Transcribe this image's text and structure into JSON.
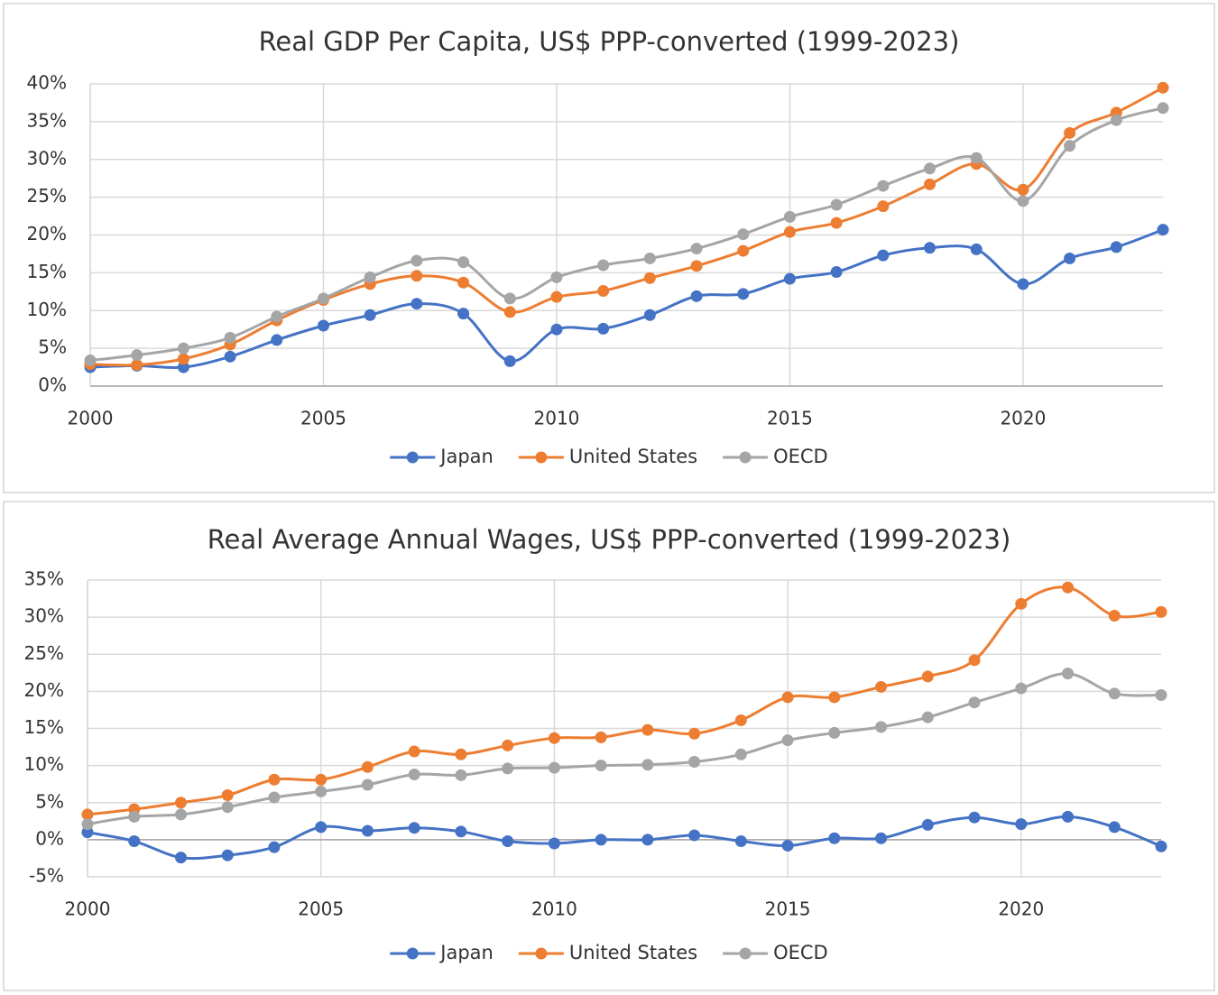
{
  "chart_data": [
    {
      "type": "line",
      "title": "Real GDP Per Capita, US$ PPP-converted (1999-2023)",
      "x": [
        2000,
        2001,
        2002,
        2003,
        2004,
        2005,
        2006,
        2007,
        2008,
        2009,
        2010,
        2011,
        2012,
        2013,
        2014,
        2015,
        2016,
        2017,
        2018,
        2019,
        2020,
        2021,
        2022,
        2023
      ],
      "xlim": [
        2000,
        2023
      ],
      "xticks": [
        2000,
        2005,
        2010,
        2015,
        2020
      ],
      "ylim": [
        0,
        40
      ],
      "yticks": [
        {
          "value": 0,
          "label": "0%"
        },
        {
          "value": 5,
          "label": "5%"
        },
        {
          "value": 10,
          "label": "10%"
        },
        {
          "value": 15,
          "label": "15%"
        },
        {
          "value": 20,
          "label": "20%"
        },
        {
          "value": 25,
          "label": "25%"
        },
        {
          "value": 30,
          "label": "30%"
        },
        {
          "value": 35,
          "label": "35%"
        },
        {
          "value": 40,
          "label": "40%"
        }
      ],
      "grid": true,
      "legend": "bottom",
      "series": [
        {
          "name": "Japan",
          "color": "#4472c4",
          "values": [
            2.5,
            2.7,
            2.5,
            3.9,
            6.1,
            8.0,
            9.4,
            10.9,
            9.6,
            3.3,
            7.5,
            7.6,
            9.4,
            11.9,
            12.2,
            14.2,
            15.1,
            17.3,
            18.3,
            18.1,
            13.5,
            16.9,
            18.4,
            20.7
          ]
        },
        {
          "name": "United States",
          "color": "#ed7d31",
          "values": [
            2.9,
            2.8,
            3.6,
            5.5,
            8.7,
            11.4,
            13.5,
            14.6,
            13.7,
            9.8,
            11.8,
            12.6,
            14.3,
            15.9,
            17.9,
            20.4,
            21.6,
            23.8,
            26.7,
            29.4,
            26.0,
            33.5,
            36.2,
            39.5
          ]
        },
        {
          "name": "OECD",
          "color": "#a5a5a5",
          "values": [
            3.4,
            4.1,
            5.0,
            6.4,
            9.2,
            11.6,
            14.4,
            16.6,
            16.4,
            11.6,
            14.4,
            16.0,
            16.9,
            18.2,
            20.1,
            22.4,
            24.0,
            26.5,
            28.8,
            30.2,
            24.5,
            31.8,
            35.2,
            36.8
          ]
        }
      ]
    },
    {
      "type": "line",
      "title": "Real Average Annual Wages, US$ PPP-converted (1999-2023)",
      "x": [
        2000,
        2001,
        2002,
        2003,
        2004,
        2005,
        2006,
        2007,
        2008,
        2009,
        2010,
        2011,
        2012,
        2013,
        2014,
        2015,
        2016,
        2017,
        2018,
        2019,
        2020,
        2021,
        2022,
        2023
      ],
      "xlim": [
        2000,
        2023
      ],
      "xticks": [
        2000,
        2005,
        2010,
        2015,
        2020
      ],
      "ylim": [
        -5,
        35
      ],
      "yticks": [
        {
          "value": -5,
          "label": "-5%"
        },
        {
          "value": 0,
          "label": "0%"
        },
        {
          "value": 5,
          "label": "5%"
        },
        {
          "value": 10,
          "label": "10%"
        },
        {
          "value": 15,
          "label": "15%"
        },
        {
          "value": 20,
          "label": "20%"
        },
        {
          "value": 25,
          "label": "25%"
        },
        {
          "value": 30,
          "label": "30%"
        },
        {
          "value": 35,
          "label": "35%"
        }
      ],
      "grid": true,
      "legend": "bottom",
      "series": [
        {
          "name": "Japan",
          "color": "#4472c4",
          "values": [
            1.0,
            -0.2,
            -2.4,
            -2.1,
            -1.0,
            1.7,
            1.2,
            1.6,
            1.1,
            -0.2,
            -0.5,
            0.0,
            0.0,
            0.6,
            -0.2,
            -0.8,
            0.2,
            0.2,
            2.0,
            3.0,
            2.1,
            3.1,
            1.7,
            -0.9
          ]
        },
        {
          "name": "United States",
          "color": "#ed7d31",
          "values": [
            3.4,
            4.1,
            5.0,
            6.0,
            8.1,
            8.1,
            9.8,
            11.9,
            11.5,
            12.7,
            13.7,
            13.8,
            14.8,
            14.3,
            16.1,
            19.2,
            19.2,
            20.6,
            22.0,
            24.2,
            31.8,
            34.0,
            30.2,
            30.7
          ]
        },
        {
          "name": "OECD",
          "color": "#a5a5a5",
          "values": [
            2.1,
            3.1,
            3.4,
            4.4,
            5.7,
            6.5,
            7.4,
            8.8,
            8.7,
            9.6,
            9.7,
            10.0,
            10.1,
            10.5,
            11.5,
            13.4,
            14.4,
            15.2,
            16.5,
            18.5,
            20.4,
            22.4,
            19.7,
            19.5
          ]
        }
      ]
    }
  ]
}
